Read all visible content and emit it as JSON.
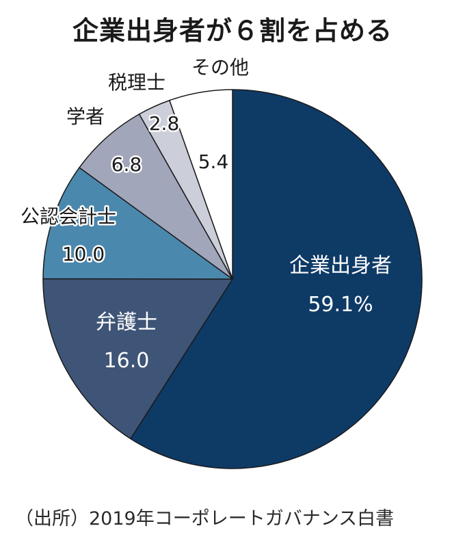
{
  "chart_data": {
    "type": "pie",
    "title": "企業出身者が６割を占める",
    "unit": "%",
    "slices": [
      {
        "name": "企業出身者",
        "value": 59.1,
        "value_label": "59.1%",
        "color": "#0e3a66"
      },
      {
        "name": "弁護士",
        "value": 16.0,
        "value_label": "16.0",
        "color": "#3f5577"
      },
      {
        "name": "公認会計士",
        "value": 10.0,
        "value_label": "10.0",
        "color": "#4b88ad"
      },
      {
        "name": "学者",
        "value": 6.8,
        "value_label": "6.8",
        "color": "#a2a6ba"
      },
      {
        "name": "税理士",
        "value": 2.8,
        "value_label": "2.8",
        "color": "#ccced9"
      },
      {
        "name": "その他",
        "value": 5.4,
        "value_label": "5.4",
        "color": "#ffffff"
      }
    ],
    "source": "（出所）2019年コーポレートガバナンス白書"
  }
}
